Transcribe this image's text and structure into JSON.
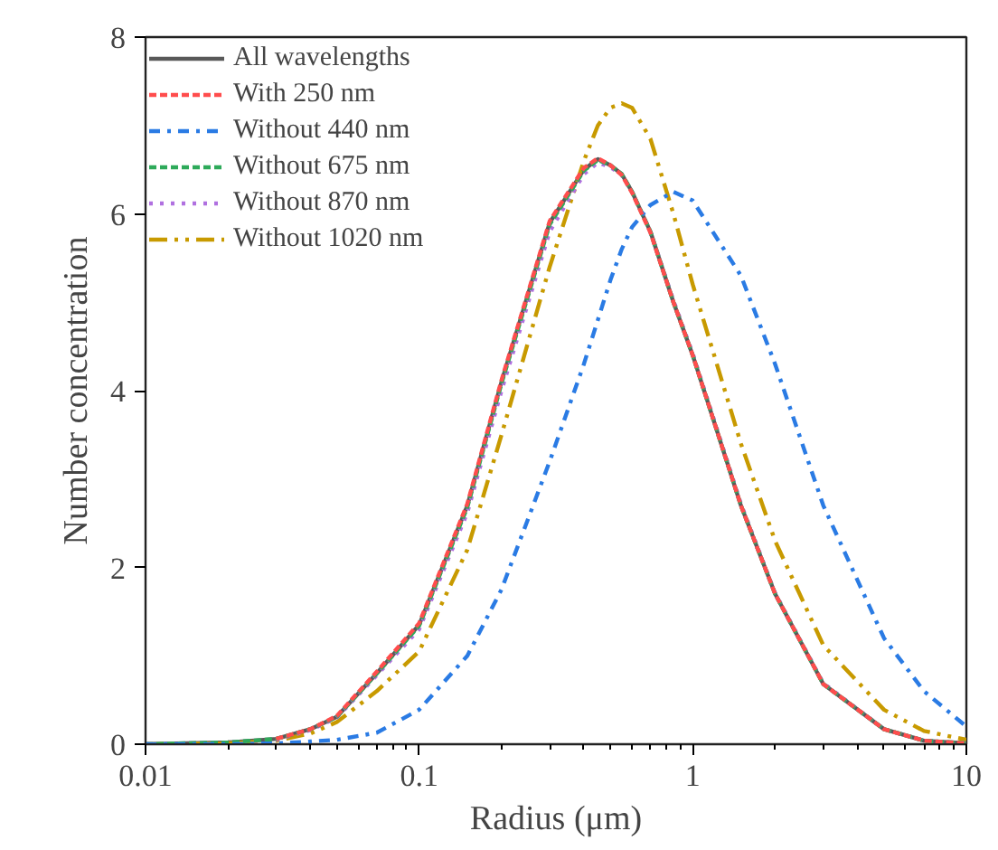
{
  "chart_data": {
    "type": "line",
    "xlabel": "Radius (μm)",
    "ylabel": "Number concentration",
    "log": "x",
    "xlim": [
      0.01,
      10
    ],
    "xticks": [
      0.01,
      0.1,
      1,
      10
    ],
    "ylim": [
      0,
      8
    ],
    "yticks": [
      0,
      2,
      4,
      6,
      8
    ],
    "grid": false,
    "legend": "top left",
    "marker": "none",
    "x": [
      0.01,
      0.02,
      0.03,
      0.04,
      0.05,
      0.07,
      0.1,
      0.15,
      0.2,
      0.3,
      0.4,
      0.45,
      0.5,
      0.55,
      0.6,
      0.7,
      0.85,
      1,
      1.5,
      2,
      3,
      5,
      7,
      10
    ],
    "series": [
      {
        "name": "All wavelengths",
        "color": "#595959",
        "line_style": "solid",
        "values": [
          0,
          0.02,
          0.06,
          0.17,
          0.31,
          0.8,
          1.35,
          2.7,
          4.1,
          5.9,
          6.5,
          6.62,
          6.55,
          6.45,
          6.25,
          5.8,
          5.0,
          4.4,
          2.7,
          1.7,
          0.68,
          0.17,
          0.04,
          0.01
        ]
      },
      {
        "name": "With 250 nm",
        "color": "#ff4d4d",
        "line_style": "dashed",
        "values": [
          null,
          null,
          0.06,
          0.17,
          0.32,
          0.82,
          1.37,
          2.72,
          4.12,
          5.92,
          6.52,
          6.63,
          6.55,
          6.44,
          6.24,
          5.79,
          5.0,
          4.4,
          2.7,
          1.7,
          0.68,
          0.17,
          0.04,
          0.01
        ]
      },
      {
        "name": "Without 440 nm",
        "color": "#2a7be4",
        "line_style": "dashdot",
        "values": [
          0,
          0,
          0.01,
          0.03,
          0.05,
          0.13,
          0.39,
          1.0,
          1.75,
          3.2,
          4.3,
          4.8,
          5.25,
          5.6,
          5.85,
          6.1,
          6.25,
          6.15,
          5.3,
          4.3,
          2.7,
          1.2,
          0.6,
          0.2
        ]
      },
      {
        "name": "Without 675 nm",
        "color": "#2eaa5a",
        "line_style": "dashed",
        "values": [
          0,
          0.02,
          0.06,
          0.17,
          0.31,
          0.8,
          1.34,
          2.68,
          4.08,
          5.88,
          6.49,
          6.61,
          6.55,
          6.45,
          6.25,
          5.8,
          5.0,
          4.4,
          2.7,
          1.7,
          0.68,
          0.17,
          0.04,
          0.01
        ]
      },
      {
        "name": "Without 870 nm",
        "color": "#b070e0",
        "line_style": "dotted",
        "values": [
          0,
          0.02,
          0.05,
          0.16,
          0.3,
          0.78,
          1.3,
          2.62,
          4.0,
          5.8,
          6.45,
          6.58,
          6.53,
          6.44,
          6.25,
          5.8,
          5.02,
          4.42,
          2.72,
          1.71,
          0.69,
          0.17,
          0.04,
          0.01
        ]
      },
      {
        "name": "Without 1020 nm",
        "color": "#c89a00",
        "line_style": "dashdotdot",
        "values": [
          0,
          0.01,
          0.04,
          0.12,
          0.25,
          0.6,
          1.05,
          2.2,
          3.5,
          5.4,
          6.6,
          7.0,
          7.2,
          7.25,
          7.2,
          6.85,
          6.0,
          5.2,
          3.4,
          2.3,
          1.12,
          0.39,
          0.15,
          0.05
        ]
      }
    ]
  }
}
